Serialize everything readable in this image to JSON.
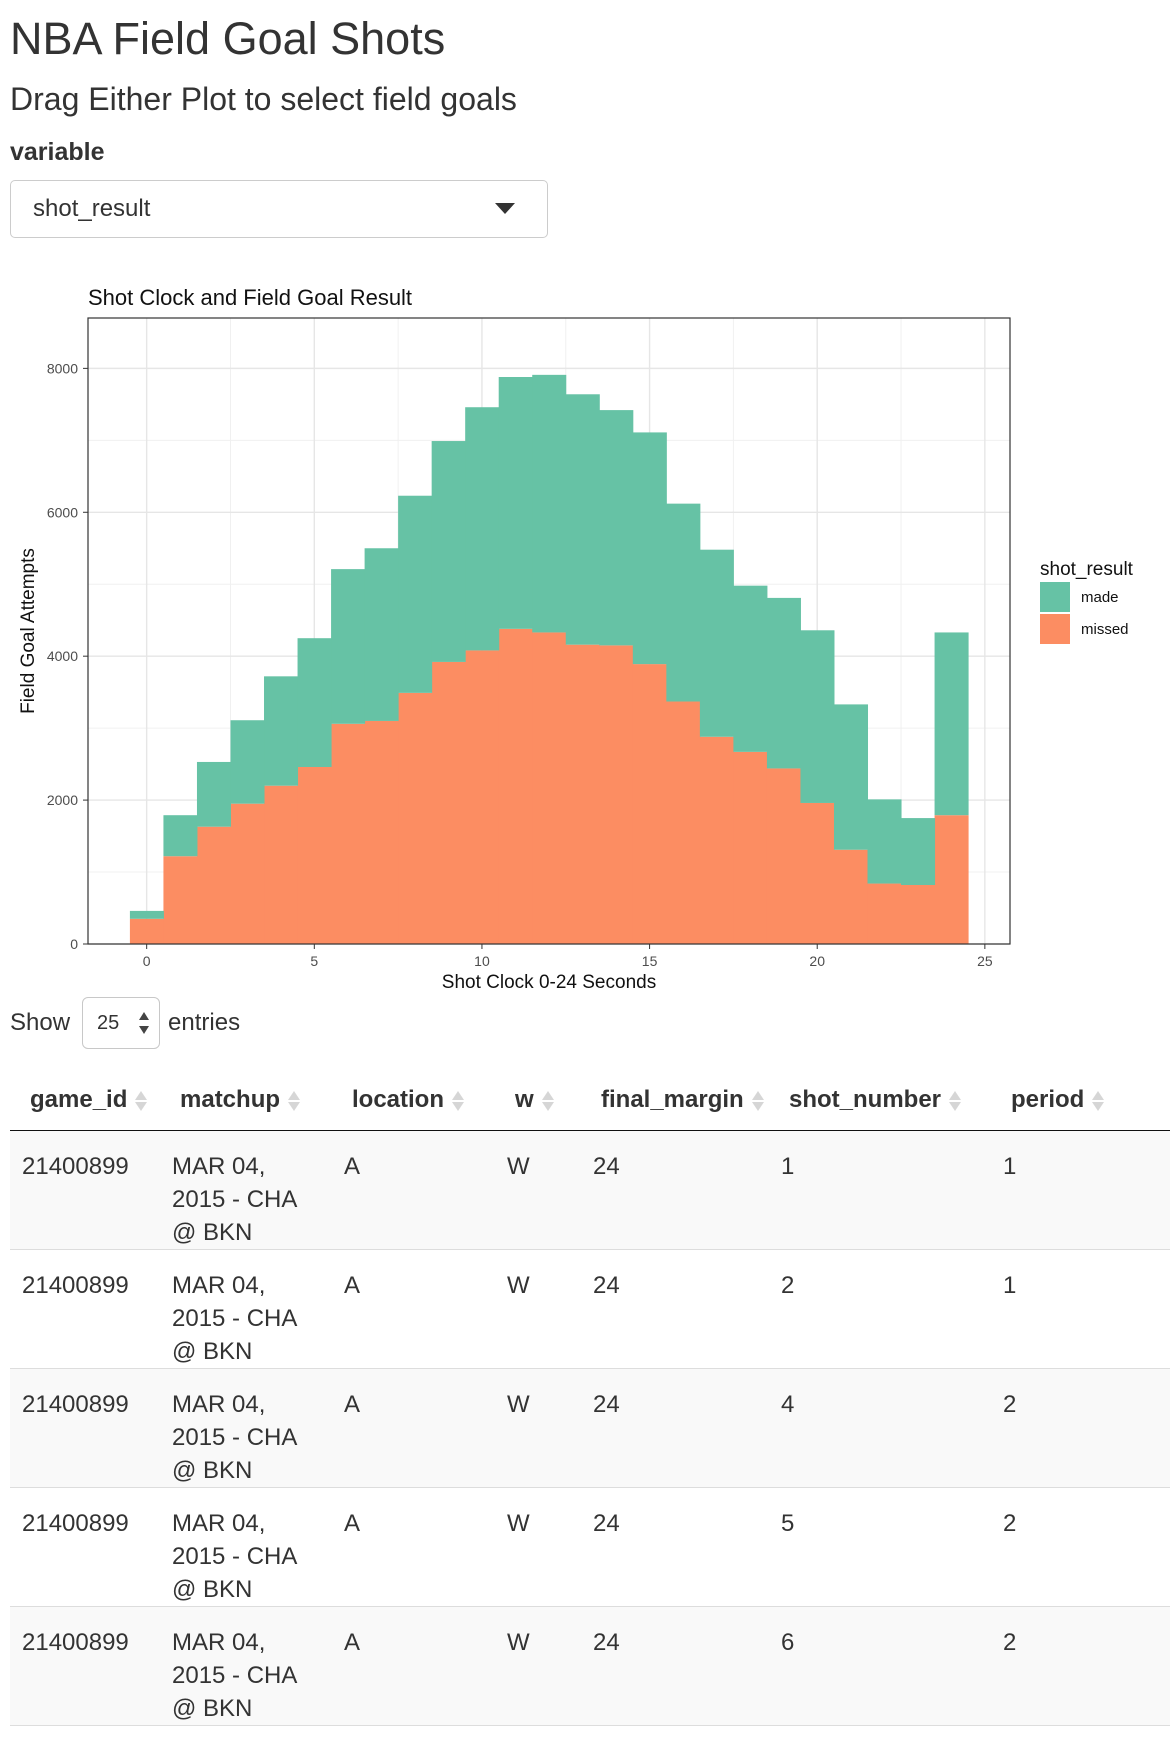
{
  "header": {
    "title": "NBA Field Goal Shots",
    "subtitle": "Drag Either Plot to select field goals"
  },
  "variable_select": {
    "label": "variable",
    "value": "shot_result"
  },
  "chart_data": {
    "type": "bar",
    "stacked": true,
    "title": "Shot Clock and Field Goal Result",
    "xlabel": "Shot Clock 0-24 Seconds",
    "ylabel": "Field Goal Attempts",
    "xlim": [
      -1.75,
      25.75
    ],
    "ylim": [
      0,
      8700
    ],
    "xticks": [
      0,
      5,
      10,
      15,
      20,
      25
    ],
    "yticks": [
      0,
      2000,
      4000,
      6000,
      8000
    ],
    "grid": true,
    "bin_width": 1,
    "bin_centers": [
      0,
      1,
      2,
      3,
      4,
      5,
      6,
      7,
      8,
      9,
      10,
      11,
      12,
      13,
      14,
      15,
      16,
      17,
      18,
      19,
      20,
      21,
      22,
      23,
      24
    ],
    "series": [
      {
        "name": "missed",
        "color": "#FC8D62",
        "values": [
          350,
          1220,
          1630,
          1950,
          2200,
          2460,
          3060,
          3100,
          3490,
          3920,
          4080,
          4380,
          4330,
          4160,
          4150,
          3890,
          3370,
          2880,
          2670,
          2440,
          1960,
          1310,
          840,
          820,
          1790
        ]
      },
      {
        "name": "made",
        "color": "#66C2A5",
        "values": [
          110,
          570,
          900,
          1160,
          1520,
          1790,
          2150,
          2400,
          2740,
          3070,
          3380,
          3500,
          3580,
          3480,
          3270,
          3220,
          2750,
          2600,
          2310,
          2370,
          2400,
          2020,
          1170,
          930,
          2540
        ]
      }
    ],
    "legend": {
      "title": "shot_result",
      "position": "right",
      "items": [
        {
          "label": "made",
          "color": "#66C2A5"
        },
        {
          "label": "missed",
          "color": "#FC8D62"
        }
      ]
    }
  },
  "table_controls": {
    "show_label": "Show",
    "entries_label": "entries",
    "page_length": "25"
  },
  "table": {
    "columns": [
      "game_id",
      "matchup",
      "location",
      "w",
      "final_margin",
      "shot_number",
      "period"
    ],
    "rows": [
      {
        "game_id": "21400899",
        "matchup": "MAR 04, 2015 - CHA @ BKN",
        "location": "A",
        "w": "W",
        "final_margin": "24",
        "shot_number": "1",
        "period": "1"
      },
      {
        "game_id": "21400899",
        "matchup": "MAR 04, 2015 - CHA @ BKN",
        "location": "A",
        "w": "W",
        "final_margin": "24",
        "shot_number": "2",
        "period": "1"
      },
      {
        "game_id": "21400899",
        "matchup": "MAR 04, 2015 - CHA @ BKN",
        "location": "A",
        "w": "W",
        "final_margin": "24",
        "shot_number": "4",
        "period": "2"
      },
      {
        "game_id": "21400899",
        "matchup": "MAR 04, 2015 - CHA @ BKN",
        "location": "A",
        "w": "W",
        "final_margin": "24",
        "shot_number": "5",
        "period": "2"
      },
      {
        "game_id": "21400899",
        "matchup": "MAR 04, 2015 - CHA @ BKN",
        "location": "A",
        "w": "W",
        "final_margin": "24",
        "shot_number": "6",
        "period": "2"
      }
    ]
  }
}
